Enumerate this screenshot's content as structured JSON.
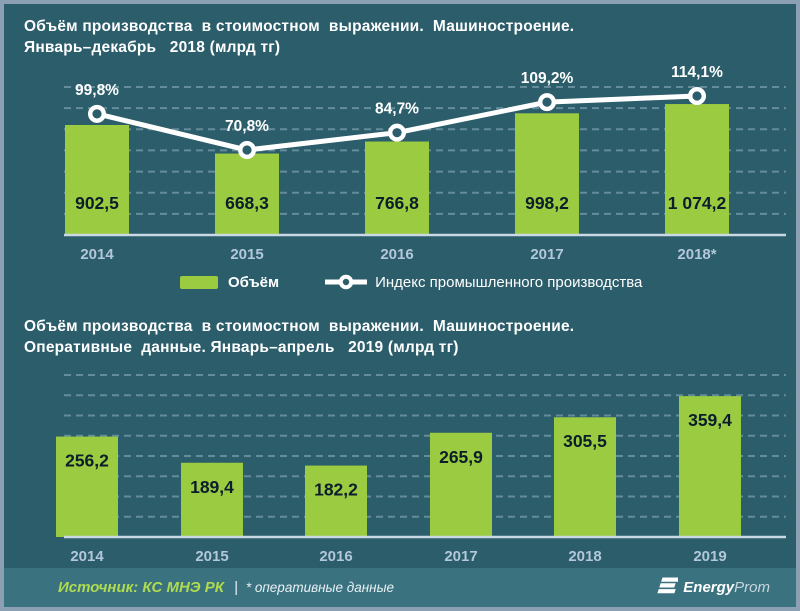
{
  "colors": {
    "background": "#2B5D6B",
    "frame_border": "#8BA0B2",
    "bar_green": "#9BCB41",
    "bar_value_text": "#0C1E2B",
    "gridline": "#9FBCC9",
    "axis_line": "#C9D8E2",
    "year_label": "#B3C7DA",
    "text_white": "#FFFFFF",
    "line_white": "#FFFFFF",
    "footer_background": "#3A7280",
    "source_text_green": "#AEDB4F",
    "note_text": "#E8F0F4",
    "logo_prom_text": "#C9D6DF"
  },
  "chart_data": [
    {
      "type": "bar",
      "title_line1": "Объём производства  в стоимостном  выражении.  Машиностроение.",
      "title_line2": "Январь–декабрь   2018 (млрд тг)",
      "categories": [
        "2014",
        "2015",
        "2016",
        "2017",
        "2018*"
      ],
      "series": [
        {
          "name": "Объём",
          "type": "bar",
          "values": [
            902.5,
            668.3,
            766.8,
            998.2,
            1074.2
          ],
          "value_labels": [
            "902,5",
            "668,3",
            "766,8",
            "998,2",
            "1 074,2"
          ]
        },
        {
          "name": "Индекс промышленного производства",
          "type": "line",
          "unit": "%",
          "values": [
            99.8,
            70.8,
            84.7,
            109.2,
            114.1
          ],
          "value_labels": [
            "99,8%",
            "70,8%",
            "84,7%",
            "109,2%",
            "114,1%"
          ]
        }
      ],
      "grid": "dashed-horizontal",
      "legend_position": "bottom",
      "bar_axis_range": [
        0,
        1435
      ],
      "line_axis_range": [
        0,
        140
      ]
    },
    {
      "type": "bar",
      "title_line1": "Объём производства  в стоимостном  выражении.  Машиностроение.",
      "title_line2": "Оперативные  данные. Январь–апрель   2019 (млрд тг)",
      "categories": [
        "2014",
        "2015",
        "2016",
        "2017",
        "2018",
        "2019"
      ],
      "series": [
        {
          "name": "Объём",
          "type": "bar",
          "values": [
            256.2,
            189.4,
            182.2,
            265.9,
            305.5,
            359.4
          ],
          "value_labels": [
            "256,2",
            "189,4",
            "182,2",
            "265,9",
            "305,5",
            "359,4"
          ]
        }
      ],
      "grid": "dashed-horizontal",
      "legend_position": "none",
      "bar_axis_range": [
        0,
        436
      ]
    }
  ],
  "footer": {
    "source": "Источник: КС МНЭ РК",
    "separator": "|",
    "note": "* оперативные данные",
    "logo_energy": "Energy",
    "logo_prom": "Prom"
  }
}
